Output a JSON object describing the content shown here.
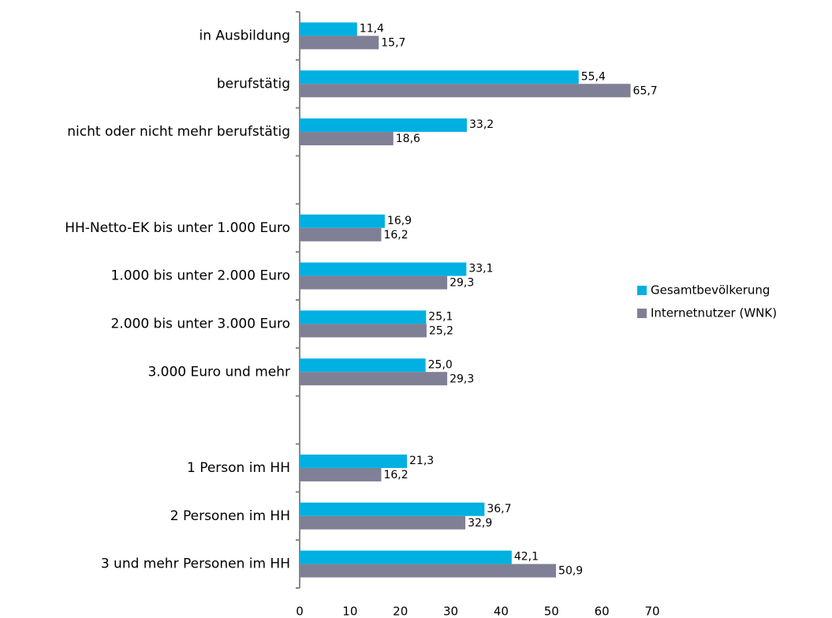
{
  "chart_data": {
    "type": "bar",
    "orientation": "horizontal",
    "categories": [
      "in Ausbildung",
      "berufstätig",
      "nicht oder nicht mehr berufstätig",
      null,
      "HH-Netto-EK bis unter 1.000 Euro",
      "1.000 bis unter 2.000 Euro",
      "2.000 bis unter 3.000 Euro",
      "3.000 Euro und mehr",
      null,
      "1 Person im HH",
      "2 Personen im HH",
      "3 und mehr Personen im HH"
    ],
    "series": [
      {
        "name": "Gesamtbevölkerung",
        "color": "#00b0e0",
        "values": [
          11.4,
          55.4,
          33.2,
          null,
          16.9,
          33.1,
          25.1,
          25.0,
          null,
          21.3,
          36.7,
          42.1
        ],
        "value_labels": [
          "11,4",
          "55,4",
          "33,2",
          null,
          "16,9",
          "33,1",
          "25,1",
          "25,0",
          null,
          "21,3",
          "36,7",
          "42,1"
        ]
      },
      {
        "name": "Internetnutzer (WNK)",
        "color": "#7f7f95",
        "values": [
          15.7,
          65.7,
          18.6,
          null,
          16.2,
          29.3,
          25.2,
          29.3,
          null,
          16.2,
          32.9,
          50.9
        ],
        "value_labels": [
          "15,7",
          "65,7",
          "18,6",
          null,
          "16,2",
          "29,3",
          "25,2",
          "29,3",
          null,
          "16,2",
          "32,9",
          "50,9"
        ]
      }
    ],
    "xlim": [
      0,
      70
    ],
    "xticks": [
      0,
      10,
      20,
      30,
      40,
      50,
      60,
      70
    ],
    "legend": "right"
  }
}
